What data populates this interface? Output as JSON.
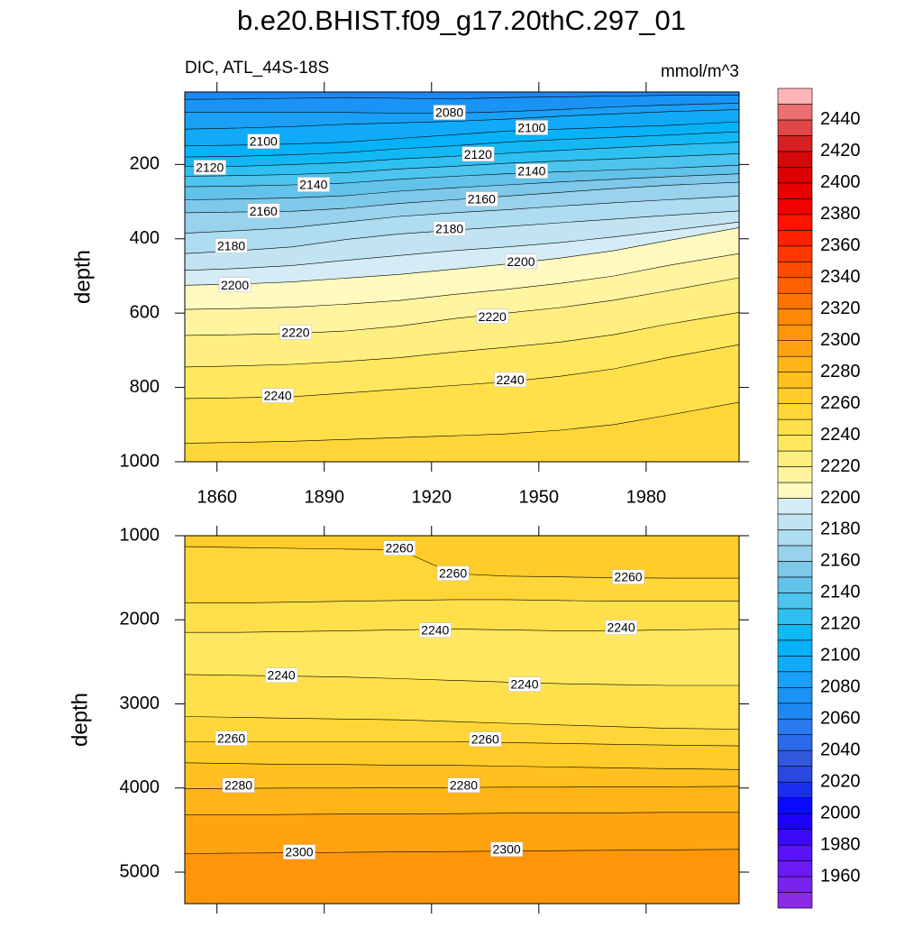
{
  "chart_data": {
    "type": "contour",
    "title": "b.e20.BHIST.f09_g17.20thC.297_01",
    "subtitle": "DIC, ATL_44S-18S",
    "units": "mmol/m^3",
    "xlim": [
      1851,
      2006
    ],
    "xticks": [
      1860,
      1890,
      1920,
      1950,
      1980
    ],
    "x": [
      1851,
      1866,
      1881,
      1896,
      1911,
      1926,
      1941,
      1956,
      1971,
      1986,
      2006
    ],
    "panels": [
      {
        "ylabel": "depth",
        "ylim": [
          5,
          1000
        ],
        "yticks": [
          200,
          400,
          600,
          800,
          1000
        ],
        "show_xtick_labels": true,
        "contours": [
          {
            "level": 2070,
            "values": [
              25,
              24,
              22,
              20,
              22,
              24,
              20,
              18,
              16,
              14,
              14
            ]
          },
          {
            "level": 2080,
            "values": [
              60,
              60,
              60,
              60,
              62,
              62,
              58,
              52,
              45,
              40,
              35
            ]
          },
          {
            "level": 2090,
            "values": [
              105,
              102,
              98,
              92,
              88,
              84,
              78,
              70,
              64,
              58,
              52
            ]
          },
          {
            "level": 2100,
            "values": [
              150,
              148,
              145,
              140,
              130,
              120,
              110,
              105,
              100,
              95,
              85
            ]
          },
          {
            "level": 2110,
            "values": [
              180,
              178,
              174,
              168,
              158,
              150,
              140,
              133,
              127,
              121,
              112
            ]
          },
          {
            "level": 2120,
            "values": [
              205,
              205,
              200,
              195,
              185,
              178,
              170,
              162,
              155,
              148,
              140
            ]
          },
          {
            "level": 2130,
            "values": [
              232,
              230,
              227,
              222,
              212,
              205,
              197,
              191,
              185,
              179,
              171
            ]
          },
          {
            "level": 2140,
            "values": [
              260,
              258,
              255,
              250,
              240,
              232,
              225,
              220,
              215,
              210,
              202
            ]
          },
          {
            "level": 2150,
            "values": [
              295,
              293,
              290,
              284,
              272,
              263,
              255,
              247,
              240,
              233,
              225
            ]
          },
          {
            "level": 2160,
            "values": [
              330,
              328,
              326,
              318,
              305,
              295,
              285,
              275,
              265,
              256,
              248
            ]
          },
          {
            "level": 2170,
            "values": [
              385,
              378,
              370,
              355,
              340,
              330,
              322,
              312,
              303,
              295,
              285
            ]
          },
          {
            "level": 2180,
            "values": [
              440,
              432,
              422,
              402,
              387,
              377,
              367,
              357,
              347,
              337,
              325
            ]
          },
          {
            "level": 2190,
            "values": [
              485,
              480,
              472,
              458,
              445,
              432,
              422,
              410,
              395,
              378,
              355
            ]
          },
          {
            "level": 2200,
            "values": [
              525,
              522,
              516,
              506,
              496,
              482,
              468,
              452,
              432,
              405,
              370
            ]
          },
          {
            "level": 2210,
            "values": [
              590,
              588,
              584,
              576,
              566,
              550,
              536,
              520,
              500,
              472,
              440
            ]
          },
          {
            "level": 2220,
            "values": [
              660,
              658,
              655,
              648,
              635,
              615,
              600,
              585,
              565,
              540,
              505
            ]
          },
          {
            "level": 2230,
            "values": [
              745,
              742,
              738,
              730,
              720,
              705,
              692,
              678,
              658,
              630,
              598
            ]
          },
          {
            "level": 2240,
            "values": [
              830,
              828,
              825,
              815,
              805,
              795,
              785,
              770,
              750,
              720,
              685
            ]
          },
          {
            "level": 2250,
            "values": [
              950,
              948,
              945,
              940,
              935,
              930,
              925,
              915,
              900,
              875,
              840
            ]
          }
        ],
        "labels": [
          {
            "x": 1925,
            "y": 63,
            "level": 2080
          },
          {
            "x": 1948,
            "y": 104,
            "level": 2100
          },
          {
            "x": 1873,
            "y": 141,
            "level": 2100
          },
          {
            "x": 1933,
            "y": 175,
            "level": 2120
          },
          {
            "x": 1858,
            "y": 211,
            "level": 2120
          },
          {
            "x": 1948,
            "y": 221,
            "level": 2140
          },
          {
            "x": 1887,
            "y": 257,
            "level": 2140
          },
          {
            "x": 1934,
            "y": 296,
            "level": 2160
          },
          {
            "x": 1873,
            "y": 328,
            "level": 2160
          },
          {
            "x": 1925,
            "y": 376,
            "level": 2180
          },
          {
            "x": 1864,
            "y": 422,
            "level": 2180
          },
          {
            "x": 1945,
            "y": 464,
            "level": 2200
          },
          {
            "x": 1865,
            "y": 527,
            "level": 2200
          },
          {
            "x": 1937,
            "y": 612,
            "level": 2220
          },
          {
            "x": 1882,
            "y": 655,
            "level": 2220
          },
          {
            "x": 1942,
            "y": 782,
            "level": 2240
          },
          {
            "x": 1877,
            "y": 825,
            "level": 2240
          }
        ]
      },
      {
        "ylabel": "depth",
        "ylim": [
          1000,
          5375
        ],
        "yticks": [
          1000,
          2000,
          3000,
          4000,
          5000
        ],
        "show_xtick_labels": false,
        "contours": [
          {
            "level": 2260,
            "values": [
              1130,
              1140,
              1150,
              1160,
              1165,
              1450,
              1480,
              1490,
              1500,
              1505,
              1505
            ]
          },
          {
            "level": 2250,
            "values": [
              1800,
              1800,
              1790,
              1780,
              1770,
              1760,
              1760,
              1770,
              1780,
              1780,
              1780
            ]
          },
          {
            "level": 2240,
            "values": [
              2150,
              2150,
              2140,
              2130,
              2120,
              2110,
              2120,
              2130,
              2130,
              2120,
              2110
            ]
          },
          {
            "level": 2240,
            "values": [
              2650,
              2660,
              2670,
              2680,
              2700,
              2720,
              2740,
              2760,
              2770,
              2780,
              2780
            ]
          },
          {
            "level": 2250,
            "values": [
              3150,
              3160,
              3170,
              3180,
              3190,
              3210,
              3230,
              3250,
              3270,
              3290,
              3300
            ]
          },
          {
            "level": 2260,
            "values": [
              3450,
              3450,
              3450,
              3450,
              3450,
              3450,
              3460,
              3470,
              3480,
              3490,
              3500
            ]
          },
          {
            "level": 2270,
            "values": [
              3700,
              3710,
              3720,
              3720,
              3730,
              3730,
              3740,
              3750,
              3760,
              3770,
              3780
            ]
          },
          {
            "level": 2280,
            "values": [
              4010,
              4005,
              4000,
              4000,
              3995,
              3995,
              3990,
              3990,
              3985,
              3985,
              3980
            ]
          },
          {
            "level": 2290,
            "values": [
              4320,
              4320,
              4315,
              4310,
              4310,
              4305,
              4300,
              4300,
              4295,
              4290,
              4290
            ]
          },
          {
            "level": 2300,
            "values": [
              4780,
              4775,
              4770,
              4765,
              4760,
              4755,
              4750,
              4745,
              4740,
              4735,
              4730
            ]
          }
        ],
        "labels": [
          {
            "x": 1911,
            "y": 1161,
            "level": 2260
          },
          {
            "x": 1926,
            "y": 1461,
            "level": 2260
          },
          {
            "x": 1975,
            "y": 1504,
            "level": 2260
          },
          {
            "x": 1921,
            "y": 2137,
            "level": 2240
          },
          {
            "x": 1973,
            "y": 2104,
            "level": 2240
          },
          {
            "x": 1878,
            "y": 2673,
            "level": 2240
          },
          {
            "x": 1946,
            "y": 2780,
            "level": 2240
          },
          {
            "x": 1864,
            "y": 3423,
            "level": 2260
          },
          {
            "x": 1935,
            "y": 3434,
            "level": 2260
          },
          {
            "x": 1866,
            "y": 3981,
            "level": 2280
          },
          {
            "x": 1929,
            "y": 3981,
            "level": 2280
          },
          {
            "x": 1883,
            "y": 4774,
            "level": 2300
          },
          {
            "x": 1941,
            "y": 4742,
            "level": 2300
          }
        ]
      }
    ],
    "colorbar": {
      "levels": [
        1950,
        1960,
        1970,
        1980,
        1990,
        2000,
        2010,
        2020,
        2030,
        2040,
        2050,
        2060,
        2070,
        2080,
        2090,
        2100,
        2110,
        2120,
        2130,
        2140,
        2150,
        2160,
        2170,
        2180,
        2190,
        2200,
        2210,
        2220,
        2230,
        2240,
        2250,
        2260,
        2270,
        2280,
        2290,
        2300,
        2310,
        2320,
        2330,
        2340,
        2350,
        2360,
        2370,
        2380,
        2390,
        2400,
        2410,
        2420,
        2430,
        2440,
        2450
      ],
      "colors": [
        "#8b2be8",
        "#7a22ee",
        "#6a1af2",
        "#5a12f6",
        "#3a0af8",
        "#1c00fa",
        "#0a0aff",
        "#1a2ef0",
        "#2a48e0",
        "#3258dc",
        "#2a6ae8",
        "#2a7af0",
        "#1e88f2",
        "#1a94f4",
        "#1aa0f6",
        "#10aaf8",
        "#08b2f8",
        "#12b8f4",
        "#2ec0f0",
        "#4cc4ee",
        "#62c2ea",
        "#7ec8ea",
        "#98d2ec",
        "#aedcf0",
        "#c2e4f2",
        "#d4ecf6",
        "#fffbc0",
        "#fff4a0",
        "#ffee80",
        "#ffe85e",
        "#ffe04a",
        "#ffd638",
        "#ffcc2a",
        "#ffc020",
        "#ffb418",
        "#ffa410",
        "#ff960a",
        "#ff8806",
        "#ff7404",
        "#ff6002",
        "#ff4a00",
        "#ff3800",
        "#ff2200",
        "#ff1200",
        "#f40000",
        "#e80000",
        "#dc0000",
        "#d40808",
        "#d42020",
        "#e04848",
        "#ec7070",
        "#ffb4b8"
      ]
    }
  }
}
